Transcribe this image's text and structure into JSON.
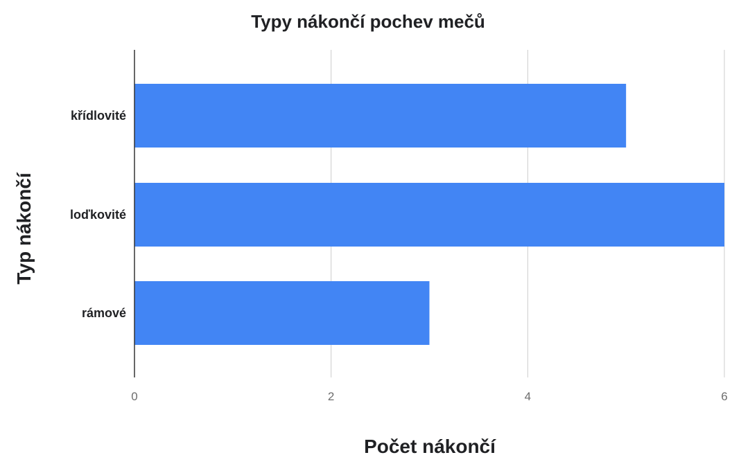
{
  "chart_data": {
    "type": "bar",
    "orientation": "horizontal",
    "title": "Typy nákončí pochev mečů",
    "xlabel": "Počet nákončí",
    "ylabel": "Typ nákončí",
    "categories": [
      "křídlovité",
      "loďkovité",
      "rámové"
    ],
    "series": [
      {
        "values": [
          5,
          6,
          3
        ]
      }
    ],
    "xlim": [
      0,
      6
    ],
    "xticks": [
      0,
      2,
      4,
      6
    ],
    "grid": true,
    "legend": "none",
    "colors": {
      "bar": "#4285f4"
    }
  }
}
